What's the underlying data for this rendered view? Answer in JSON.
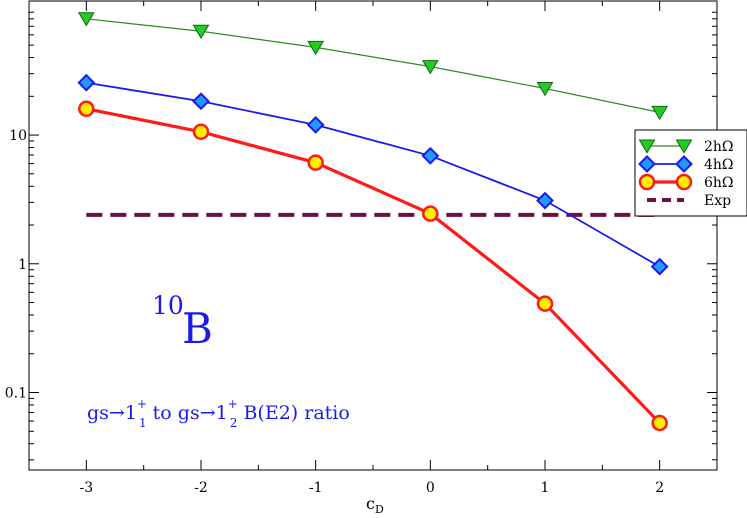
{
  "chart_data": {
    "type": "line",
    "xlabel": "c",
    "xlabel_sub": "D",
    "ylabel": "",
    "yscale": "log",
    "xlim": [
      -3.5,
      2.5
    ],
    "ylim": [
      0.025,
      110
    ],
    "x_ticks": [
      -3,
      -2,
      -1,
      0,
      1,
      2
    ],
    "x_tick_labels": [
      "-3",
      "-2",
      "-1",
      "0",
      "1",
      "2"
    ],
    "y_ticks": [
      0.1,
      1,
      10
    ],
    "y_tick_labels": [
      "0.1",
      "1",
      "10"
    ],
    "x": [
      -3,
      -2,
      -1,
      0,
      1,
      2
    ],
    "series": [
      {
        "name": "2hΩ",
        "values": [
          80,
          64,
          48,
          34,
          23,
          15
        ],
        "color": "#2e8b22",
        "marker": "triangle-down",
        "marker_fill": "#22cc22"
      },
      {
        "name": "4hΩ",
        "values": [
          25.5,
          18.3,
          12.0,
          6.9,
          3.1,
          0.95
        ],
        "color": "#1a1aee",
        "marker": "diamond",
        "marker_fill": "#2299ff"
      },
      {
        "name": "6hΩ",
        "values": [
          16.0,
          10.6,
          6.1,
          2.45,
          0.49,
          0.058
        ],
        "color": "#ff1a1a",
        "marker": "circle",
        "marker_fill": "#ffee00"
      }
    ],
    "reference": {
      "name": "Exp",
      "value": 2.4,
      "color": "#6b1040",
      "style": "dashed"
    },
    "legend_placement": "right",
    "annotations": {
      "nucleus_mass": "10",
      "nucleus_symbol": "B",
      "ratio_label": {
        "p1": "gs→1",
        "p1_sup": "+",
        "p1_sub": "1",
        "p2": "  to  gs→1",
        "p2_sup": "+",
        "p2_sub": "2",
        "p3": "  B(E2) ratio"
      },
      "color": "#1a1aee"
    },
    "grid": false
  }
}
